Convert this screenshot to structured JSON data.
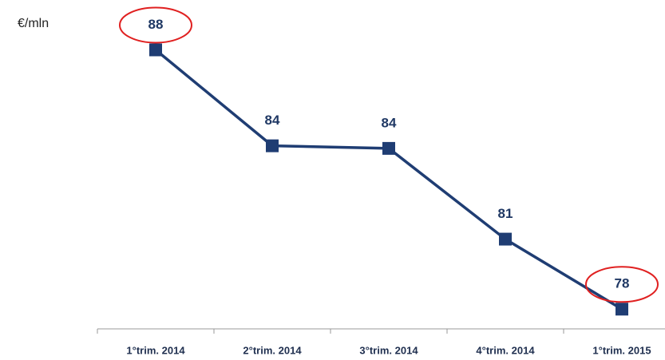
{
  "chart_data": {
    "type": "line",
    "unit": "€/mln",
    "categories": [
      "1°trim. 2014",
      "2°trim. 2014",
      "3°trim. 2014",
      "4°trim. 2014",
      "1°trim. 2015"
    ],
    "series": [
      {
        "name": null,
        "color": "#1f3d73",
        "values": [
          88,
          84.3,
          84.2,
          80.7,
          78
        ],
        "value_labels": [
          "88",
          "84",
          "84",
          "81",
          "78"
        ]
      }
    ],
    "ylim": [
      77.3,
      89
    ]
  }
}
